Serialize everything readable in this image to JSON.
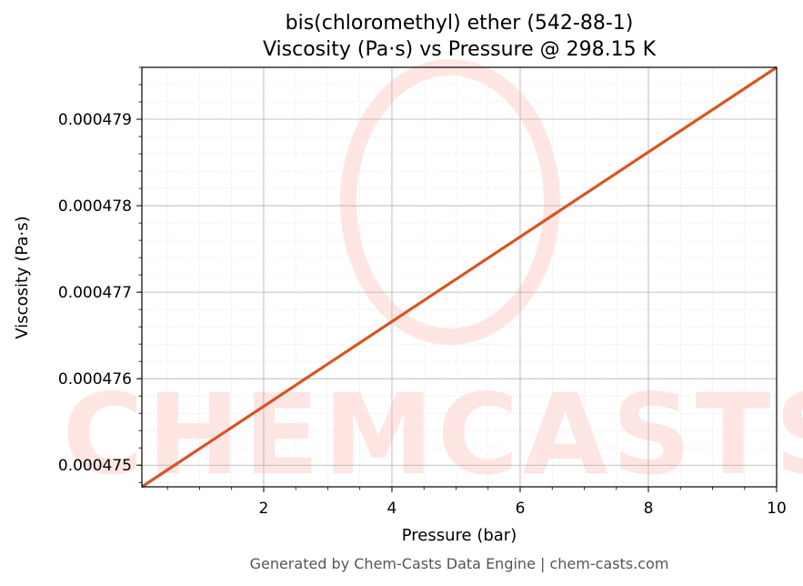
{
  "chart_data": {
    "type": "line",
    "title": "bis(chloromethyl) ether (542-88-1)",
    "subtitle": "Viscosity (Pa·s) vs Pressure @ 298.15 K",
    "xlabel": "Pressure (bar)",
    "ylabel": "Viscosity (Pa·s)",
    "xlim": [
      0.1,
      10
    ],
    "ylim": [
      0.00047475,
      0.0004796
    ],
    "xticks": [
      2,
      4,
      6,
      8,
      10
    ],
    "xtick_labels": [
      "2",
      "4",
      "6",
      "8",
      "10"
    ],
    "yticks": [
      0.000475,
      0.000476,
      0.000477,
      0.000478,
      0.000479
    ],
    "ytick_labels": [
      "0.000475",
      "0.000476",
      "0.000477",
      "0.000478",
      "0.000479"
    ],
    "grid": true,
    "series": [
      {
        "color": "#d95423",
        "x": [
          0.1,
          10
        ],
        "y": [
          0.00047475,
          0.0004796
        ]
      }
    ]
  },
  "watermark": {
    "text": "CHEMCASTS",
    "color": "#ffe6e3"
  },
  "footer": "Generated by Chem-Casts Data Engine | chem-casts.com"
}
